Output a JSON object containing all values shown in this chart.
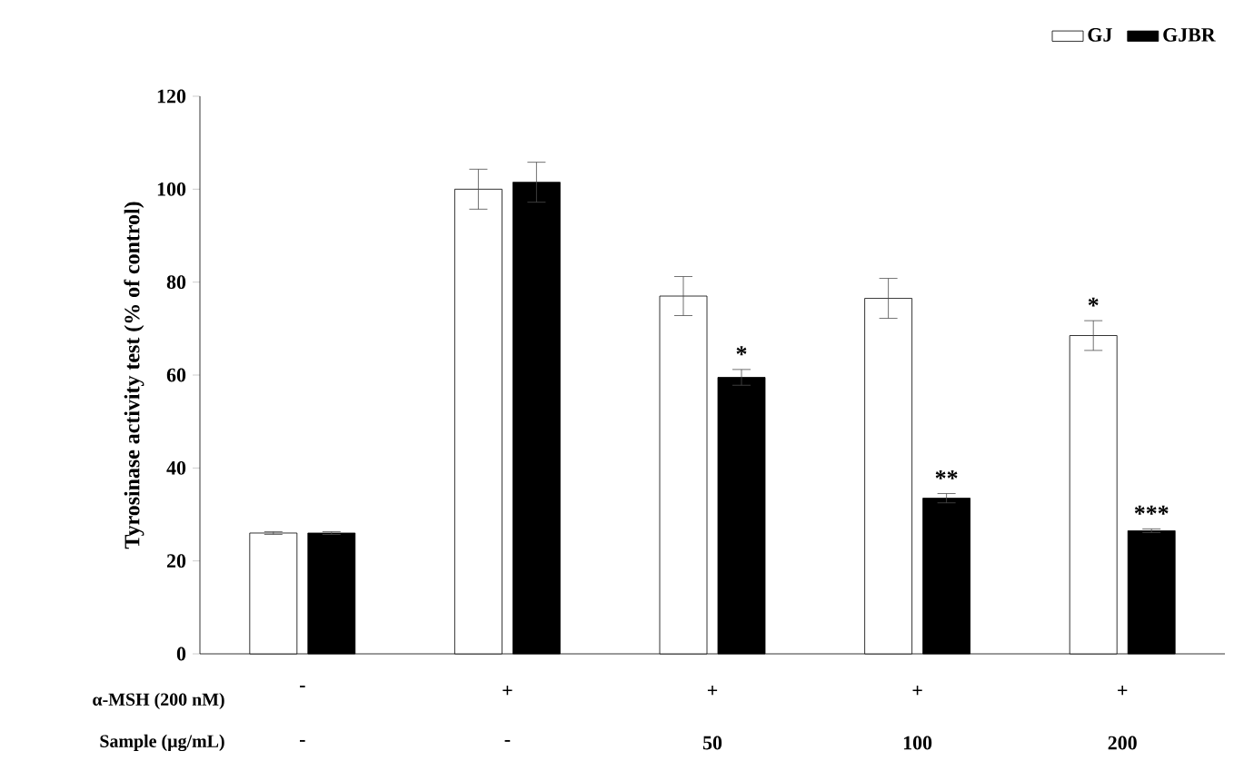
{
  "chart_data": {
    "type": "bar",
    "ylabel": "Tyrosinase activity test (% of control)",
    "categories": [
      "-",
      "+",
      "+",
      "+",
      "+"
    ],
    "series": [
      {
        "name": "GJ",
        "color": "#ffffff",
        "values": [
          26,
          100,
          77,
          76.5,
          68.5
        ],
        "errors": [
          0.3,
          4.3,
          4.2,
          4.3,
          3.2
        ]
      },
      {
        "name": "GJBR",
        "color": "#000000",
        "values": [
          26,
          101.5,
          59.5,
          33.5,
          26.5
        ],
        "errors": [
          0.3,
          4.3,
          1.7,
          1,
          0.4
        ]
      }
    ],
    "ylim": [
      0,
      120
    ],
    "yticks": [
      0,
      20,
      40,
      60,
      80,
      100,
      120
    ],
    "legend": "top right",
    "grid": false,
    "annotations": [
      "α-MSH (200 nM)",
      "Sample (µg/mL)",
      "-",
      "-",
      "50",
      "100",
      "200",
      "*",
      "*",
      "**",
      "***"
    ]
  }
}
